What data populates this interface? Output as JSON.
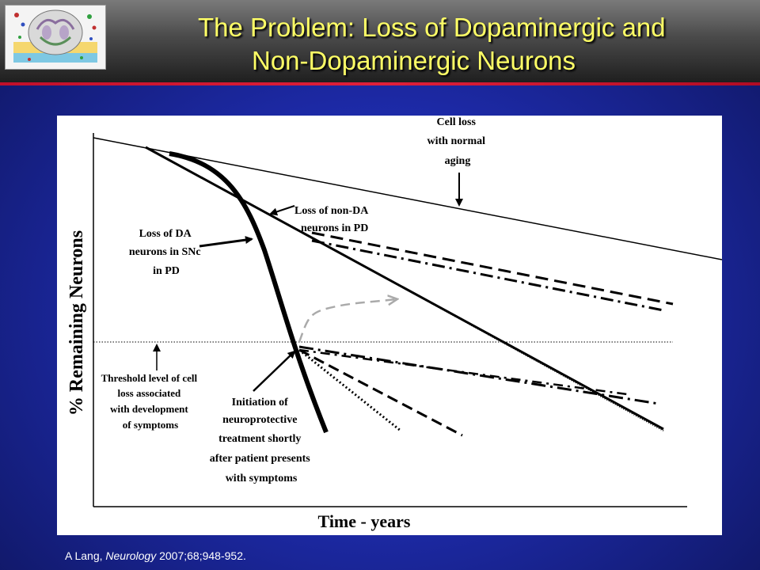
{
  "slide": {
    "title_line1": "The Problem: Loss of Dopaminergic and",
    "title_line2": "Non-Dopaminergic Neurons",
    "citation": {
      "author": "A Lang, ",
      "journal": "Neurology",
      "details": " 2007;68;948-952."
    },
    "colors": {
      "background": "#1d2aa8",
      "title": "#ffff66",
      "accent_rule": "#d0182e"
    },
    "logo_icon": "brain-illustration-icon"
  },
  "figure": {
    "y_axis_label": "% Remaining Neurons",
    "x_axis_label": "Time - years",
    "annotations": {
      "normal_aging": [
        "Cell loss",
        "with normal",
        "aging"
      ],
      "non_da_loss": [
        "Loss of non-DA",
        "neurons in PD"
      ],
      "da_loss": [
        "Loss of DA",
        "neurons in SNc",
        "in PD"
      ],
      "threshold": [
        "Threshold level of cell",
        "loss associated",
        "with development",
        "of symptoms"
      ],
      "treatment": [
        "Initiation of",
        "neuroprotective",
        "treatment shortly",
        "after patient presents",
        "with symptoms"
      ]
    }
  }
}
